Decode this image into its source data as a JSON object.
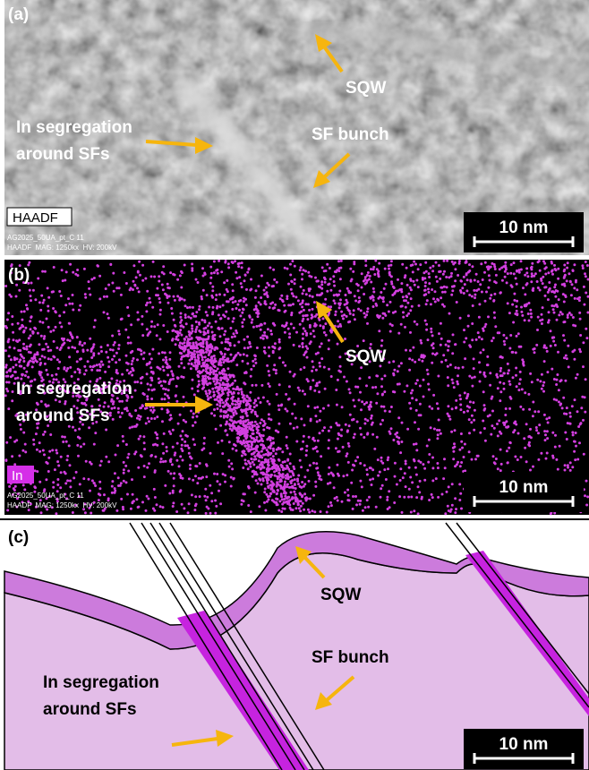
{
  "panels": [
    {
      "label": "(a)",
      "annotations": {
        "sqw": "SQW",
        "segregation": [
          "In segregation",
          "around SFs"
        ],
        "sf_bunch": "SF bunch"
      },
      "detector": "HAADF",
      "metadata": [
        "AG2025_50UA_pt_C 11",
        "HAADF  MAG: 1250kx  HV: 200kV"
      ],
      "scale_bar": "10 nm"
    },
    {
      "label": "(b)",
      "annotations": {
        "sqw": "SQW",
        "segregation": [
          "In segregation",
          "around SFs"
        ]
      },
      "element": "In",
      "metadata": [
        "AG2025_50UA_pt_C 11",
        "HAADF  MAG: 1250kx  HV: 200kV"
      ],
      "scale_bar": "10 nm"
    },
    {
      "label": "(c)",
      "annotations": {
        "sqw": "SQW",
        "segregation": [
          "In segregation",
          "around SFs"
        ],
        "sf_bunch": "SF bunch"
      },
      "scale_bar": "10 nm"
    }
  ]
}
